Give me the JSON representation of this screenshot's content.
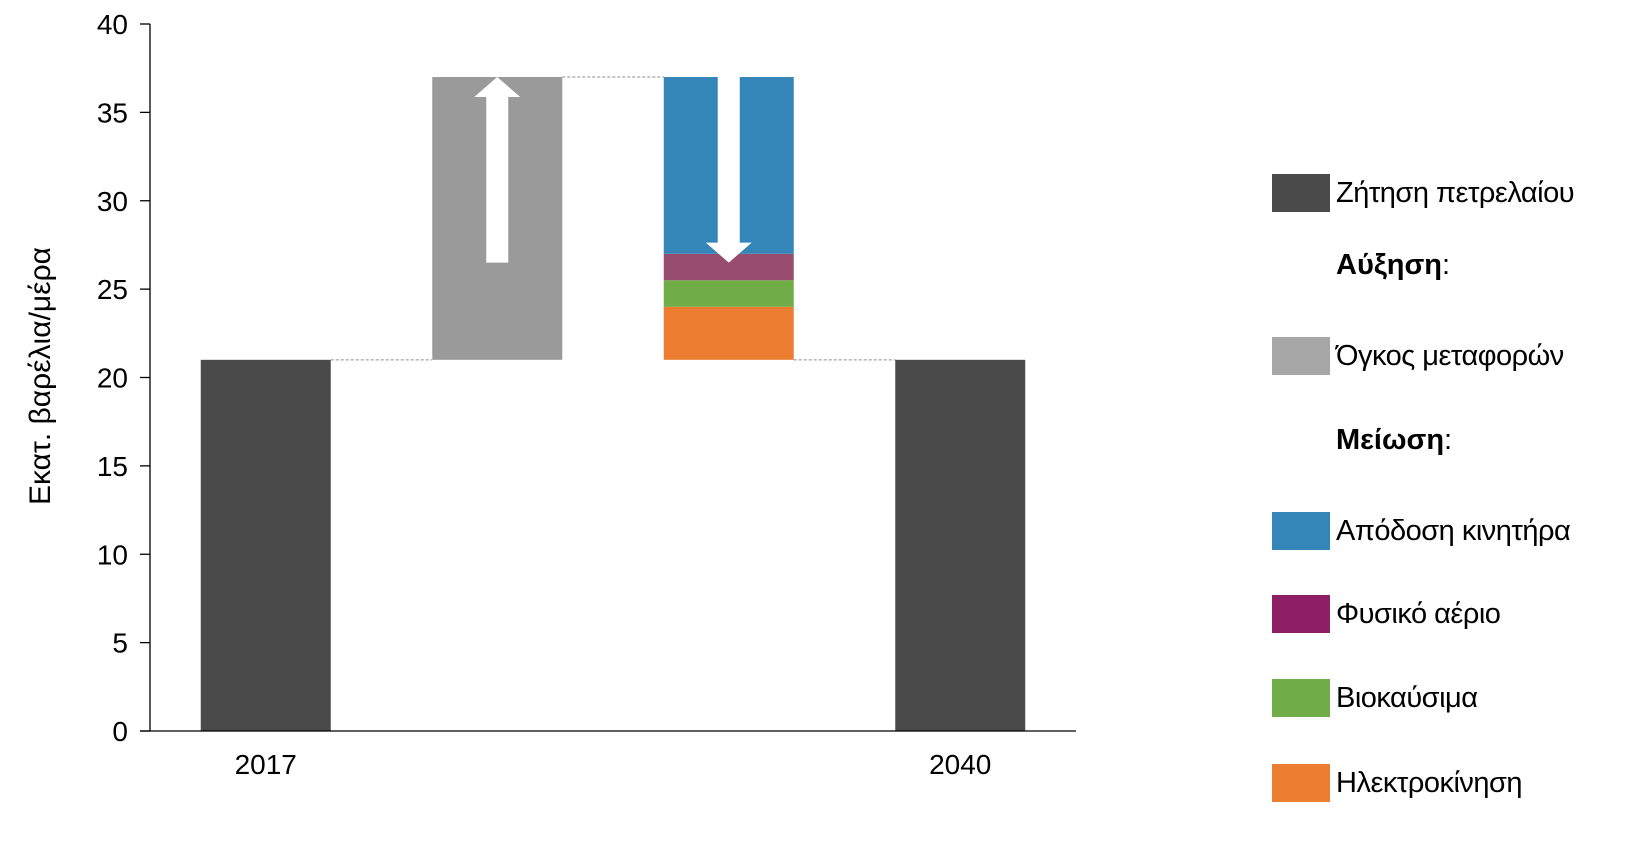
{
  "chart_data": {
    "type": "bar",
    "subtype": "waterfall",
    "ylabel": "Εκατ. βαρέλια/μέρα",
    "ylim": [
      0,
      40
    ],
    "yticks": [
      0,
      5,
      10,
      15,
      20,
      25,
      30,
      35,
      40
    ],
    "categories": [
      "2017",
      "",
      "",
      "2040"
    ],
    "bars": [
      {
        "category": "2017",
        "series": "Ζήτηση πετρελαίου",
        "base": 0,
        "top": 21,
        "color": "#4a4a4a"
      },
      {
        "category": "",
        "series": "Όγκος μεταφορών",
        "base": 21,
        "top": 37,
        "color": "#9a9a9a",
        "arrow": "up"
      },
      {
        "category": "",
        "series": "Ηλεκτροκίνηση",
        "base": 21,
        "top": 24,
        "color": "#ed7d31"
      },
      {
        "category": "",
        "series": "Βιοκαύσιμα",
        "base": 24,
        "top": 25.5,
        "color": "#70ad47"
      },
      {
        "category": "",
        "series": "Φυσικό αέριο",
        "base": 25.5,
        "top": 27,
        "color": "#974d6e"
      },
      {
        "category": "",
        "series": "Απόδοση κινητήρα",
        "base": 27,
        "top": 37,
        "color": "#3485b8",
        "arrow": "down"
      },
      {
        "category": "2040",
        "series": "Ζήτηση πετρελαίου",
        "base": 0,
        "top": 21,
        "color": "#4a4a4a"
      }
    ],
    "connectors": [
      21,
      37,
      21
    ],
    "grid": false,
    "legend_placement": "right"
  },
  "legend": {
    "items": [
      {
        "kind": "swatch",
        "label": "Ζήτηση πετρελαίου",
        "color": "#4a4a4a"
      },
      {
        "kind": "heading",
        "label": "Αύξηση",
        "suffix": ":"
      },
      {
        "kind": "swatch",
        "label": "Όγκος μεταφορών",
        "color": "#a6a6a6"
      },
      {
        "kind": "heading",
        "label": "Μείωση",
        "suffix": ":"
      },
      {
        "kind": "swatch",
        "label": "Απόδοση κινητήρα",
        "color": "#3485b8"
      },
      {
        "kind": "swatch",
        "label": "Φυσικό αέριο",
        "color": "#8e1f66"
      },
      {
        "kind": "swatch",
        "label": "Βιοκαύσιμα",
        "color": "#70ad47"
      },
      {
        "kind": "swatch",
        "label": "Ηλεκτροκίνηση",
        "color": "#ed7d31"
      }
    ]
  }
}
